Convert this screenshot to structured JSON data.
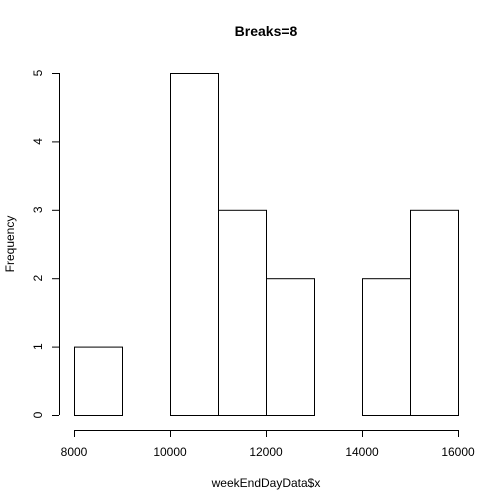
{
  "chart_data": {
    "type": "bar",
    "title": "Breaks=8",
    "xlabel": "weekEndDayData$x",
    "ylabel": "Frequency",
    "bins": [
      {
        "x0": 8000,
        "x1": 9000,
        "count": 1
      },
      {
        "x0": 9000,
        "x1": 10000,
        "count": 0
      },
      {
        "x0": 10000,
        "x1": 11000,
        "count": 5
      },
      {
        "x0": 11000,
        "x1": 12000,
        "count": 3
      },
      {
        "x0": 12000,
        "x1": 13000,
        "count": 2
      },
      {
        "x0": 13000,
        "x1": 14000,
        "count": 0
      },
      {
        "x0": 14000,
        "x1": 15000,
        "count": 2
      },
      {
        "x0": 15000,
        "x1": 16000,
        "count": 3
      }
    ],
    "xlim": [
      8000,
      16000
    ],
    "ylim": [
      0,
      5
    ],
    "x_ticks": [
      "8000",
      "10000",
      "12000",
      "14000",
      "16000"
    ],
    "y_ticks": [
      "0",
      "1",
      "2",
      "3",
      "4",
      "5"
    ],
    "grid": false,
    "bar_fill": "#ffffff",
    "bar_stroke": "#000000"
  }
}
